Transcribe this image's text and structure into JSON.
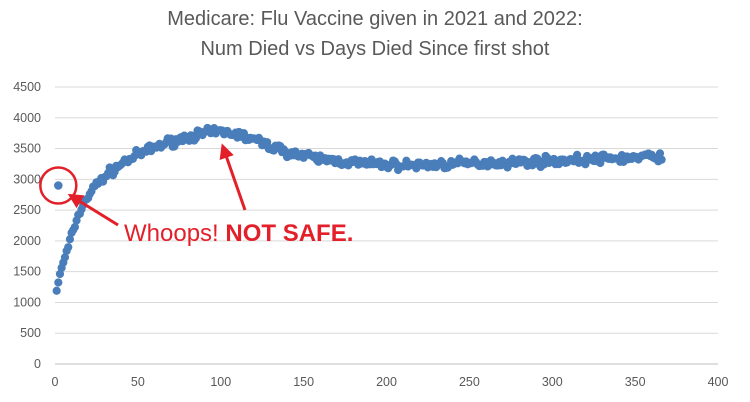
{
  "chart_data": {
    "type": "scatter",
    "title_line1": "Medicare: Flu Vaccine given in 2021 and 2022:",
    "title_line2": "Num Died vs Days Died Since first shot",
    "xlabel": "",
    "ylabel": "",
    "xlim": [
      0,
      400
    ],
    "ylim": [
      0,
      4500
    ],
    "x_ticks": [
      0,
      50,
      100,
      150,
      200,
      250,
      300,
      350,
      400
    ],
    "y_ticks": [
      0,
      500,
      1000,
      1500,
      2000,
      2500,
      3000,
      3500,
      4000,
      4500
    ],
    "grid": "horizontal",
    "legend": "none",
    "marker_color": "#4a7ebb",
    "annotation": {
      "text_normal": "Whoops! ",
      "text_bold": "NOT SAFE.",
      "color": "#e3202a",
      "highlighted_point": {
        "x": 2,
        "y": 2900
      },
      "arrow_targets": [
        {
          "x": 2,
          "y": 2900
        },
        {
          "x": 100,
          "y": 3700
        }
      ]
    },
    "curve": [
      {
        "x": 1,
        "y": 1200
      },
      {
        "x": 3,
        "y": 1450
      },
      {
        "x": 5,
        "y": 1650
      },
      {
        "x": 8,
        "y": 1900
      },
      {
        "x": 10,
        "y": 2100
      },
      {
        "x": 14,
        "y": 2400
      },
      {
        "x": 18,
        "y": 2650
      },
      {
        "x": 22,
        "y": 2800
      },
      {
        "x": 26,
        "y": 2950
      },
      {
        "x": 30,
        "y": 3050
      },
      {
        "x": 35,
        "y": 3150
      },
      {
        "x": 40,
        "y": 3250
      },
      {
        "x": 45,
        "y": 3330
      },
      {
        "x": 50,
        "y": 3400
      },
      {
        "x": 55,
        "y": 3460
      },
      {
        "x": 60,
        "y": 3520
      },
      {
        "x": 65,
        "y": 3570
      },
      {
        "x": 70,
        "y": 3610
      },
      {
        "x": 75,
        "y": 3650
      },
      {
        "x": 80,
        "y": 3690
      },
      {
        "x": 85,
        "y": 3720
      },
      {
        "x": 90,
        "y": 3740
      },
      {
        "x": 95,
        "y": 3760
      },
      {
        "x": 100,
        "y": 3770
      },
      {
        "x": 105,
        "y": 3760
      },
      {
        "x": 110,
        "y": 3730
      },
      {
        "x": 115,
        "y": 3690
      },
      {
        "x": 120,
        "y": 3640
      },
      {
        "x": 125,
        "y": 3590
      },
      {
        "x": 130,
        "y": 3540
      },
      {
        "x": 135,
        "y": 3490
      },
      {
        "x": 140,
        "y": 3450
      },
      {
        "x": 145,
        "y": 3410
      },
      {
        "x": 150,
        "y": 3380
      },
      {
        "x": 160,
        "y": 3330
      },
      {
        "x": 170,
        "y": 3300
      },
      {
        "x": 180,
        "y": 3270
      },
      {
        "x": 190,
        "y": 3250
      },
      {
        "x": 200,
        "y": 3240
      },
      {
        "x": 210,
        "y": 3230
      },
      {
        "x": 220,
        "y": 3230
      },
      {
        "x": 230,
        "y": 3240
      },
      {
        "x": 240,
        "y": 3250
      },
      {
        "x": 250,
        "y": 3260
      },
      {
        "x": 260,
        "y": 3270
      },
      {
        "x": 270,
        "y": 3270
      },
      {
        "x": 280,
        "y": 3280
      },
      {
        "x": 290,
        "y": 3290
      },
      {
        "x": 300,
        "y": 3300
      },
      {
        "x": 310,
        "y": 3310
      },
      {
        "x": 320,
        "y": 3320
      },
      {
        "x": 330,
        "y": 3330
      },
      {
        "x": 340,
        "y": 3340
      },
      {
        "x": 350,
        "y": 3350
      },
      {
        "x": 360,
        "y": 3370
      },
      {
        "x": 366,
        "y": 3380
      }
    ],
    "noise": 55
  }
}
